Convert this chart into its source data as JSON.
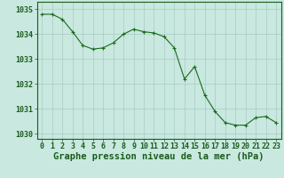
{
  "x": [
    0,
    1,
    2,
    3,
    4,
    5,
    6,
    7,
    8,
    9,
    10,
    11,
    12,
    13,
    14,
    15,
    16,
    17,
    18,
    19,
    20,
    21,
    22,
    23
  ],
  "y": [
    1034.8,
    1034.8,
    1034.6,
    1034.1,
    1033.55,
    1033.4,
    1033.45,
    1033.65,
    1034.0,
    1034.2,
    1034.1,
    1034.05,
    1033.9,
    1033.45,
    1032.2,
    1032.7,
    1031.55,
    1030.9,
    1030.45,
    1030.35,
    1030.35,
    1030.65,
    1030.7,
    1030.45
  ],
  "line_color": "#1a6b1a",
  "marker": "+",
  "marker_color": "#1a6b1a",
  "bg_color": "#c8e8e0",
  "grid_color": "#a8ccc4",
  "text_color": "#1a5c1a",
  "xlabel": "Graphe pression niveau de la mer (hPa)",
  "ylim": [
    1029.8,
    1035.3
  ],
  "yticks": [
    1030,
    1031,
    1032,
    1033,
    1034,
    1035
  ],
  "xticks": [
    0,
    1,
    2,
    3,
    4,
    5,
    6,
    7,
    8,
    9,
    10,
    11,
    12,
    13,
    14,
    15,
    16,
    17,
    18,
    19,
    20,
    21,
    22,
    23
  ],
  "tick_fontsize": 6.0,
  "xlabel_fontsize": 7.5,
  "linewidth": 0.8,
  "markersize": 3.5
}
